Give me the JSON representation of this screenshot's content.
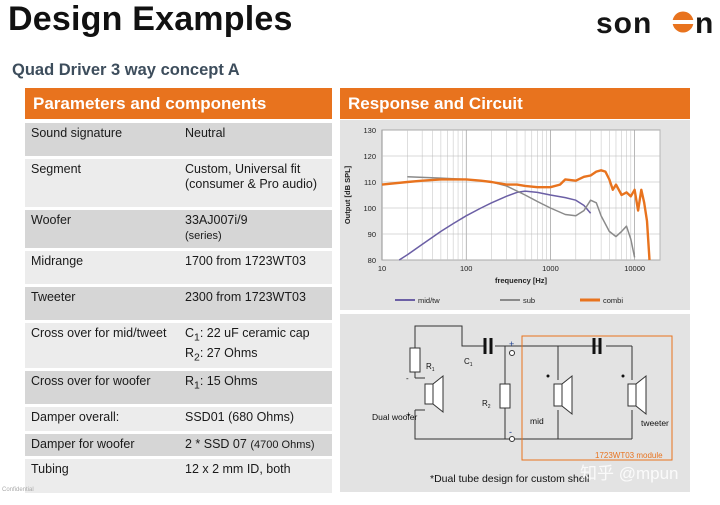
{
  "header": {
    "title": "Design Examples",
    "subtitle": "Quad Driver 3 way concept A",
    "logo_text": "sonion"
  },
  "left_panel": {
    "heading": "Parameters and components",
    "rows": [
      {
        "key": "Sound signature",
        "value": "Neutral"
      },
      {
        "key": "Segment",
        "value": "Custom, Universal fit (consumer & Pro audio)"
      },
      {
        "key": "Woofer",
        "value": "33AJ007i/9",
        "value_note": "(series)"
      },
      {
        "key": "Midrange",
        "value": "1700 from 1723WT03"
      },
      {
        "key": "Tweeter",
        "value": "2300 from 1723WT03"
      },
      {
        "key": "Cross over for mid/tweet",
        "value_line1_prefix": "C",
        "value_line1_sub": "1",
        "value_line1_rest": ": 22 uF ceramic cap",
        "value_line2_prefix": "R",
        "value_line2_sub": "2",
        "value_line2_rest": ": 27 Ohms"
      },
      {
        "key": "Cross over for woofer",
        "value_prefix": "R",
        "value_sub": "1",
        "value_rest": ": 15 Ohms"
      },
      {
        "key": "Damper overall:",
        "value": "SSD01 (680 Ohms)"
      },
      {
        "key": "Damper for woofer",
        "value": "2 * SSD 07",
        "value_note": "(4700 Ohms)"
      },
      {
        "key": "Tubing",
        "value": "12 x 2 mm ID, both"
      }
    ]
  },
  "right_panel": {
    "heading": "Response and Circuit",
    "circuit": {
      "labels": {
        "r1": "R",
        "r1_sub": "1",
        "c1": "C",
        "c1_sub": "1",
        "r2": "R",
        "r2_sub": "2",
        "woofer": "Dual woofer",
        "mid": "mid",
        "tweeter": "tweeter",
        "module": "1723WT03 module",
        "plus": "+",
        "minus": "-"
      },
      "note": "*Dual tube design for custom shell"
    }
  },
  "footer": {
    "tiny": "Confidential",
    "watermark": "知乎 @mpun"
  },
  "colors": {
    "accent": "#e8731e",
    "series_midtw": "#6b5fa5",
    "series_sub": "#8a8a8a",
    "series_combi": "#e8731e"
  },
  "chart_data": {
    "type": "line",
    "title": "",
    "xlabel": "frequency [Hz]",
    "ylabel": "Output [dB SPL]",
    "xscale": "log",
    "xlim": [
      10,
      20000
    ],
    "ylim": [
      80,
      130
    ],
    "xticks": [
      10,
      100,
      1000,
      10000
    ],
    "yticks": [
      80,
      90,
      100,
      110,
      120,
      130
    ],
    "grid": true,
    "legend": "bottom",
    "series": [
      {
        "name": "mid/tw",
        "color": "#6b5fa5",
        "x": [
          16,
          20,
          30,
          50,
          70,
          100,
          150,
          200,
          300,
          400,
          500,
          700,
          1000,
          1500,
          2000,
          2500,
          3000
        ],
        "y": [
          80,
          82,
          86,
          91,
          94,
          97,
          100,
          102,
          104.5,
          106,
          106.5,
          106,
          105,
          104,
          103,
          101,
          98
        ]
      },
      {
        "name": "sub",
        "color": "#8a8a8a",
        "x": [
          20,
          50,
          100,
          200,
          300,
          500,
          700,
          1000,
          1500,
          2000,
          2500,
          3000,
          3500,
          4000,
          5000,
          6000,
          7000,
          8000,
          9000,
          10000
        ],
        "y": [
          112,
          111.5,
          111,
          110,
          108.5,
          105,
          102.5,
          100,
          97.5,
          97,
          99,
          103,
          102,
          97,
          91,
          89,
          91,
          93,
          88,
          81
        ]
      },
      {
        "name": "combi",
        "color": "#e8731e",
        "x": [
          10,
          20,
          30,
          50,
          100,
          150,
          200,
          300,
          400,
          500,
          700,
          1000,
          1300,
          1500,
          2000,
          2500,
          3000,
          3500,
          4000,
          4500,
          5000,
          5500,
          6000,
          7000,
          8000,
          9000,
          10000,
          11000,
          12000,
          13000,
          14000,
          15000
        ],
        "y": [
          109,
          110,
          110.5,
          111,
          111,
          110.5,
          110,
          109,
          109,
          108.5,
          108,
          108,
          109,
          111,
          110.5,
          112,
          112.5,
          114,
          114.5,
          114,
          111,
          107,
          109,
          105,
          106,
          104.5,
          107,
          99,
          107,
          102,
          95,
          80
        ]
      }
    ]
  }
}
